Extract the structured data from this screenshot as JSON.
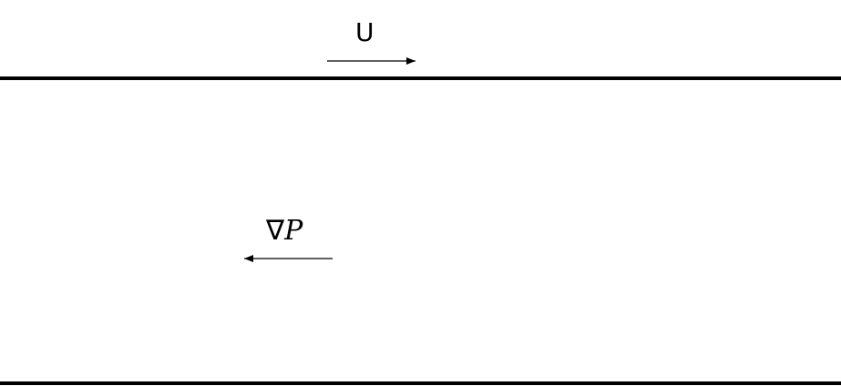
{
  "diagram": {
    "plate_velocity_label": "U",
    "pressure_gradient_label": {
      "operator": "∇",
      "variable": "P"
    },
    "colors": {
      "line": "#000000",
      "background": "#ffffff"
    }
  }
}
